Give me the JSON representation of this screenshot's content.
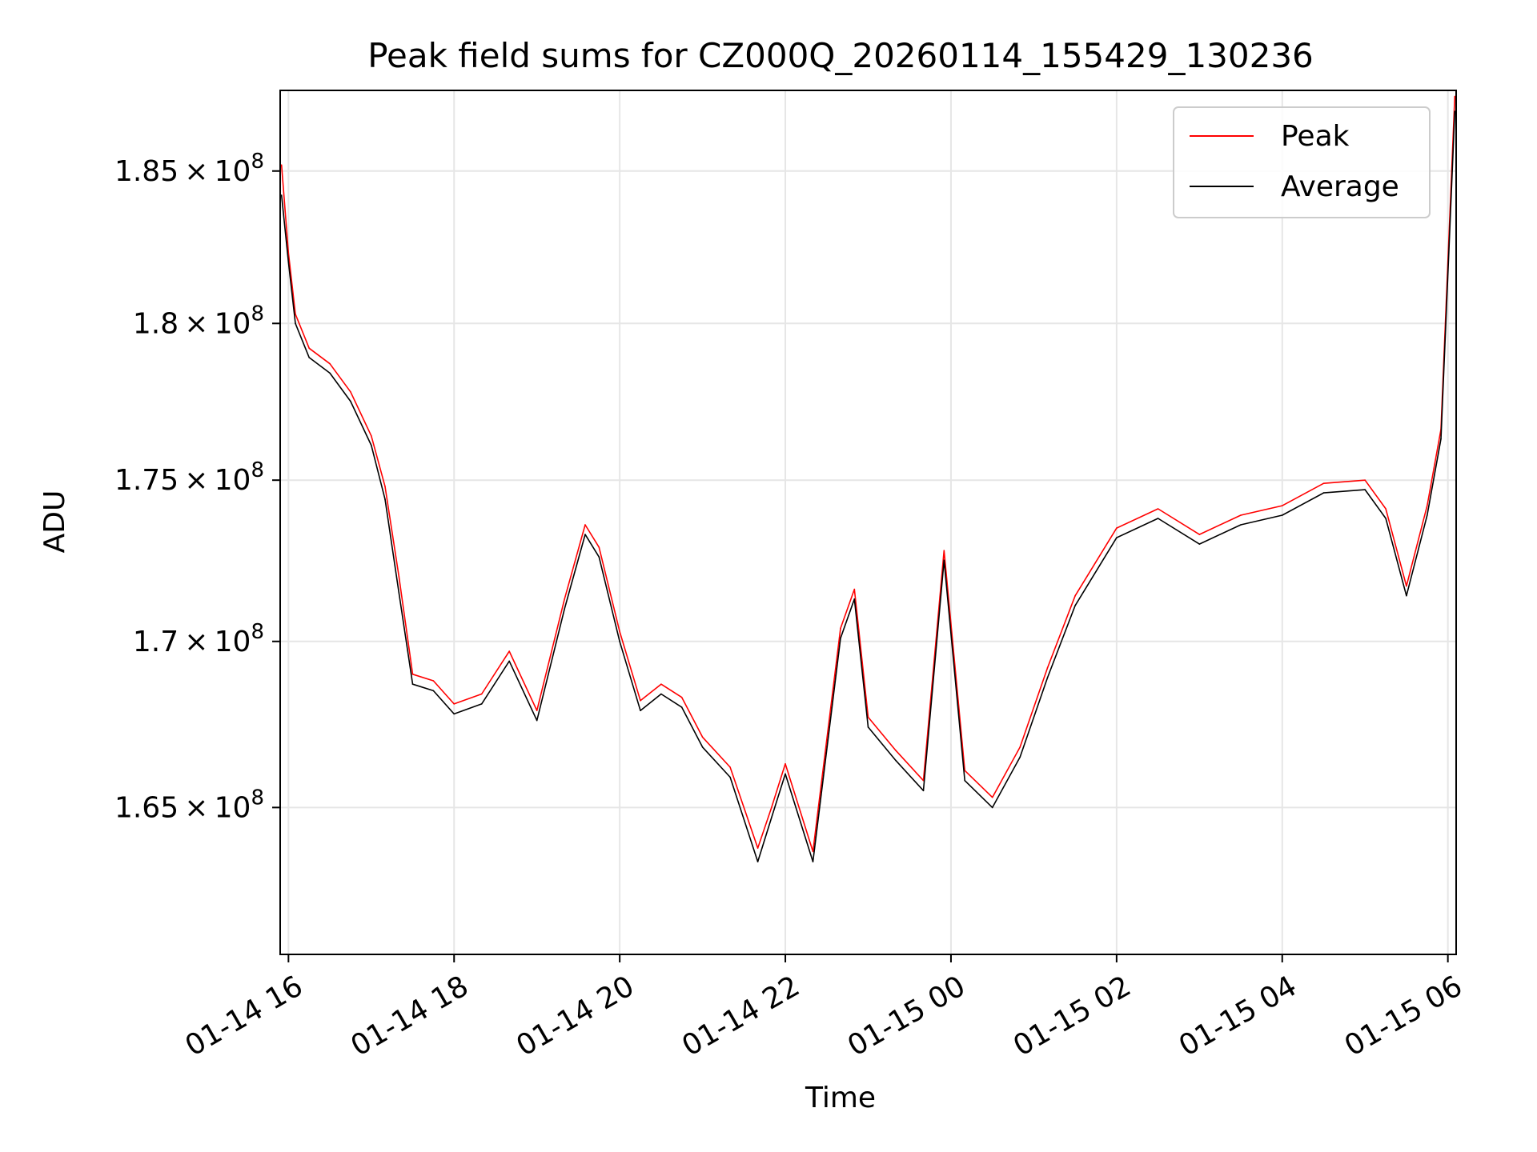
{
  "chart_data": {
    "type": "line",
    "title": "Peak field sums for CZ000Q_20260114_155429_130236",
    "xlabel": "Time",
    "ylabel": "ADU",
    "y_scale": "log",
    "grid": true,
    "legend_position": "upper right",
    "xlim": [
      "2026-01-14 15:54",
      "2026-01-15 06:06"
    ],
    "ylim": [
      160700000,
      187700000
    ],
    "x_ticks": [
      {
        "value": "2026-01-14 16:00",
        "label": "01-14 16"
      },
      {
        "value": "2026-01-14 18:00",
        "label": "01-14 18"
      },
      {
        "value": "2026-01-14 20:00",
        "label": "01-14 20"
      },
      {
        "value": "2026-01-14 22:00",
        "label": "01-14 22"
      },
      {
        "value": "2026-01-15 00:00",
        "label": "01-15 00"
      },
      {
        "value": "2026-01-15 02:00",
        "label": "01-15 02"
      },
      {
        "value": "2026-01-15 04:00",
        "label": "01-15 04"
      },
      {
        "value": "2026-01-15 06:00",
        "label": "01-15 06"
      }
    ],
    "y_ticks": [
      {
        "value": 165000000,
        "mantissa": "1.65",
        "base": "10",
        "exp": "8"
      },
      {
        "value": 170000000,
        "mantissa": "1.7",
        "base": "10",
        "exp": "8"
      },
      {
        "value": 175000000,
        "mantissa": "1.75",
        "base": "10",
        "exp": "8"
      },
      {
        "value": 180000000,
        "mantissa": "1.8",
        "base": "10",
        "exp": "8"
      },
      {
        "value": 185000000,
        "mantissa": "1.85",
        "base": "10",
        "exp": "8"
      }
    ],
    "x": [
      "2026-01-14 15:55",
      "2026-01-14 16:00",
      "2026-01-14 16:05",
      "2026-01-14 16:15",
      "2026-01-14 16:30",
      "2026-01-14 16:45",
      "2026-01-14 17:00",
      "2026-01-14 17:10",
      "2026-01-14 17:20",
      "2026-01-14 17:30",
      "2026-01-14 17:45",
      "2026-01-14 18:00",
      "2026-01-14 18:20",
      "2026-01-14 18:40",
      "2026-01-14 19:00",
      "2026-01-14 19:20",
      "2026-01-14 19:35",
      "2026-01-14 19:45",
      "2026-01-14 20:00",
      "2026-01-14 20:15",
      "2026-01-14 20:30",
      "2026-01-14 20:45",
      "2026-01-14 21:00",
      "2026-01-14 21:20",
      "2026-01-14 21:40",
      "2026-01-14 21:50",
      "2026-01-14 22:00",
      "2026-01-14 22:20",
      "2026-01-14 22:40",
      "2026-01-14 22:50",
      "2026-01-14 23:00",
      "2026-01-14 23:20",
      "2026-01-14 23:40",
      "2026-01-14 23:55",
      "2026-01-15 00:10",
      "2026-01-15 00:30",
      "2026-01-15 00:50",
      "2026-01-15 01:10",
      "2026-01-15 01:30",
      "2026-01-15 02:00",
      "2026-01-15 02:30",
      "2026-01-15 03:00",
      "2026-01-15 03:30",
      "2026-01-15 04:00",
      "2026-01-15 04:30",
      "2026-01-15 05:00",
      "2026-01-15 05:15",
      "2026-01-15 05:30",
      "2026-01-15 05:45",
      "2026-01-15 05:55",
      "2026-01-15 06:05"
    ],
    "series": [
      {
        "name": "Peak",
        "color": "#ff0000",
        "values": [
          185200000,
          182300000,
          180300000,
          179200000,
          178700000,
          177800000,
          176400000,
          174800000,
          172000000,
          169000000,
          168800000,
          168100000,
          168400000,
          169700000,
          167900000,
          171300000,
          173600000,
          172900000,
          170300000,
          168200000,
          168700000,
          168300000,
          167100000,
          166200000,
          163800000,
          165000000,
          166300000,
          163700000,
          170400000,
          171600000,
          167700000,
          166700000,
          165800000,
          172800000,
          166100000,
          165300000,
          166800000,
          169200000,
          171400000,
          173500000,
          174100000,
          173300000,
          173900000,
          174200000,
          174900000,
          175000000,
          174100000,
          171700000,
          174200000,
          176600000,
          187500000
        ]
      },
      {
        "name": "Average",
        "color": "#000000",
        "values": [
          184200000,
          182000000,
          180000000,
          178900000,
          178400000,
          177500000,
          176100000,
          174400000,
          171500000,
          168700000,
          168500000,
          167800000,
          168100000,
          169400000,
          167600000,
          171000000,
          173300000,
          172600000,
          170000000,
          167900000,
          168400000,
          168000000,
          166800000,
          165900000,
          163400000,
          164700000,
          166000000,
          163400000,
          170100000,
          171300000,
          167400000,
          166400000,
          165500000,
          172500000,
          165800000,
          165000000,
          166500000,
          168900000,
          171100000,
          173200000,
          173800000,
          173000000,
          173600000,
          173900000,
          174600000,
          174700000,
          173800000,
          171400000,
          173900000,
          176300000,
          187000000
        ]
      }
    ]
  }
}
